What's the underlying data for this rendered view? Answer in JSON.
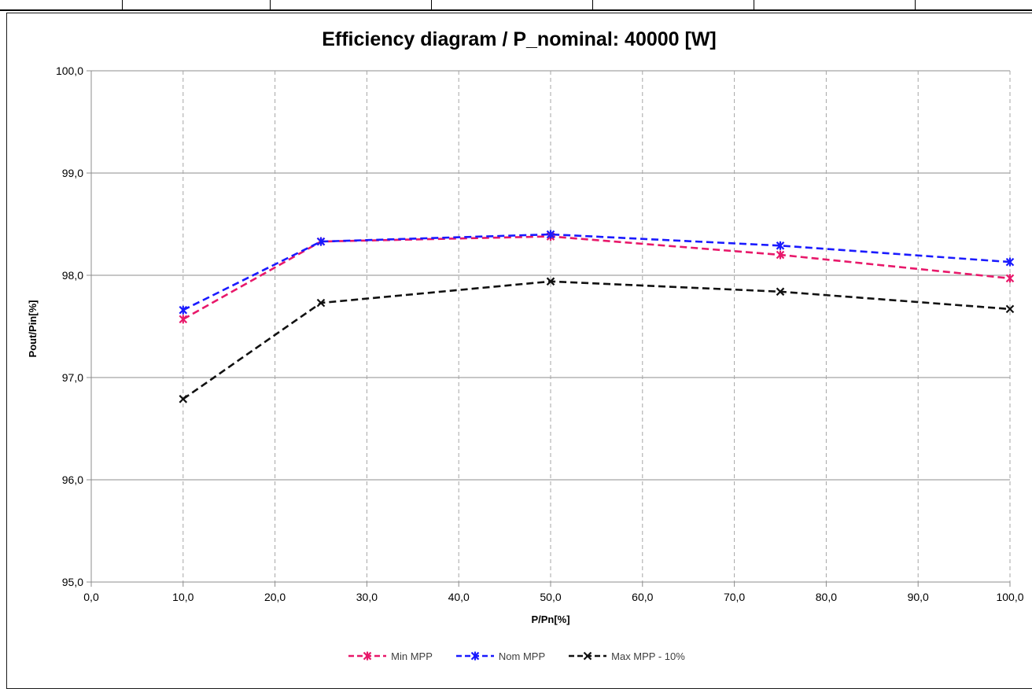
{
  "chart_data": {
    "type": "line",
    "title": "Efficiency diagram / P_nominal: 40000 [W]",
    "xlabel": "P/Pn[%]",
    "ylabel": "Pout/Pin[%]",
    "xlim": [
      0,
      100
    ],
    "ylim": [
      95,
      100
    ],
    "x_ticks": [
      "0,0",
      "10,0",
      "20,0",
      "30,0",
      "40,0",
      "50,0",
      "60,0",
      "70,0",
      "80,0",
      "90,0",
      "100,0"
    ],
    "y_ticks": [
      "95,0",
      "96,0",
      "97,0",
      "98,0",
      "99,0",
      "100,0"
    ],
    "x_tick_values": [
      0,
      10,
      20,
      30,
      40,
      50,
      60,
      70,
      80,
      90,
      100
    ],
    "y_tick_values": [
      95,
      96,
      97,
      98,
      99,
      100
    ],
    "grid": true,
    "legend_position": "bottom",
    "x": [
      10,
      25,
      50,
      75,
      100
    ],
    "series": [
      {
        "name": "Min MPP",
        "color": "#e8186a",
        "marker": "star",
        "values": [
          97.57,
          98.33,
          98.38,
          98.2,
          97.97
        ]
      },
      {
        "name": "Nom MPP",
        "color": "#1a1aff",
        "marker": "star",
        "values": [
          97.66,
          98.33,
          98.4,
          98.29,
          98.13
        ]
      },
      {
        "name": "Max MPP - 10%",
        "color": "#111111",
        "marker": "x",
        "values": [
          96.79,
          97.73,
          97.94,
          97.84,
          97.67
        ]
      }
    ]
  }
}
